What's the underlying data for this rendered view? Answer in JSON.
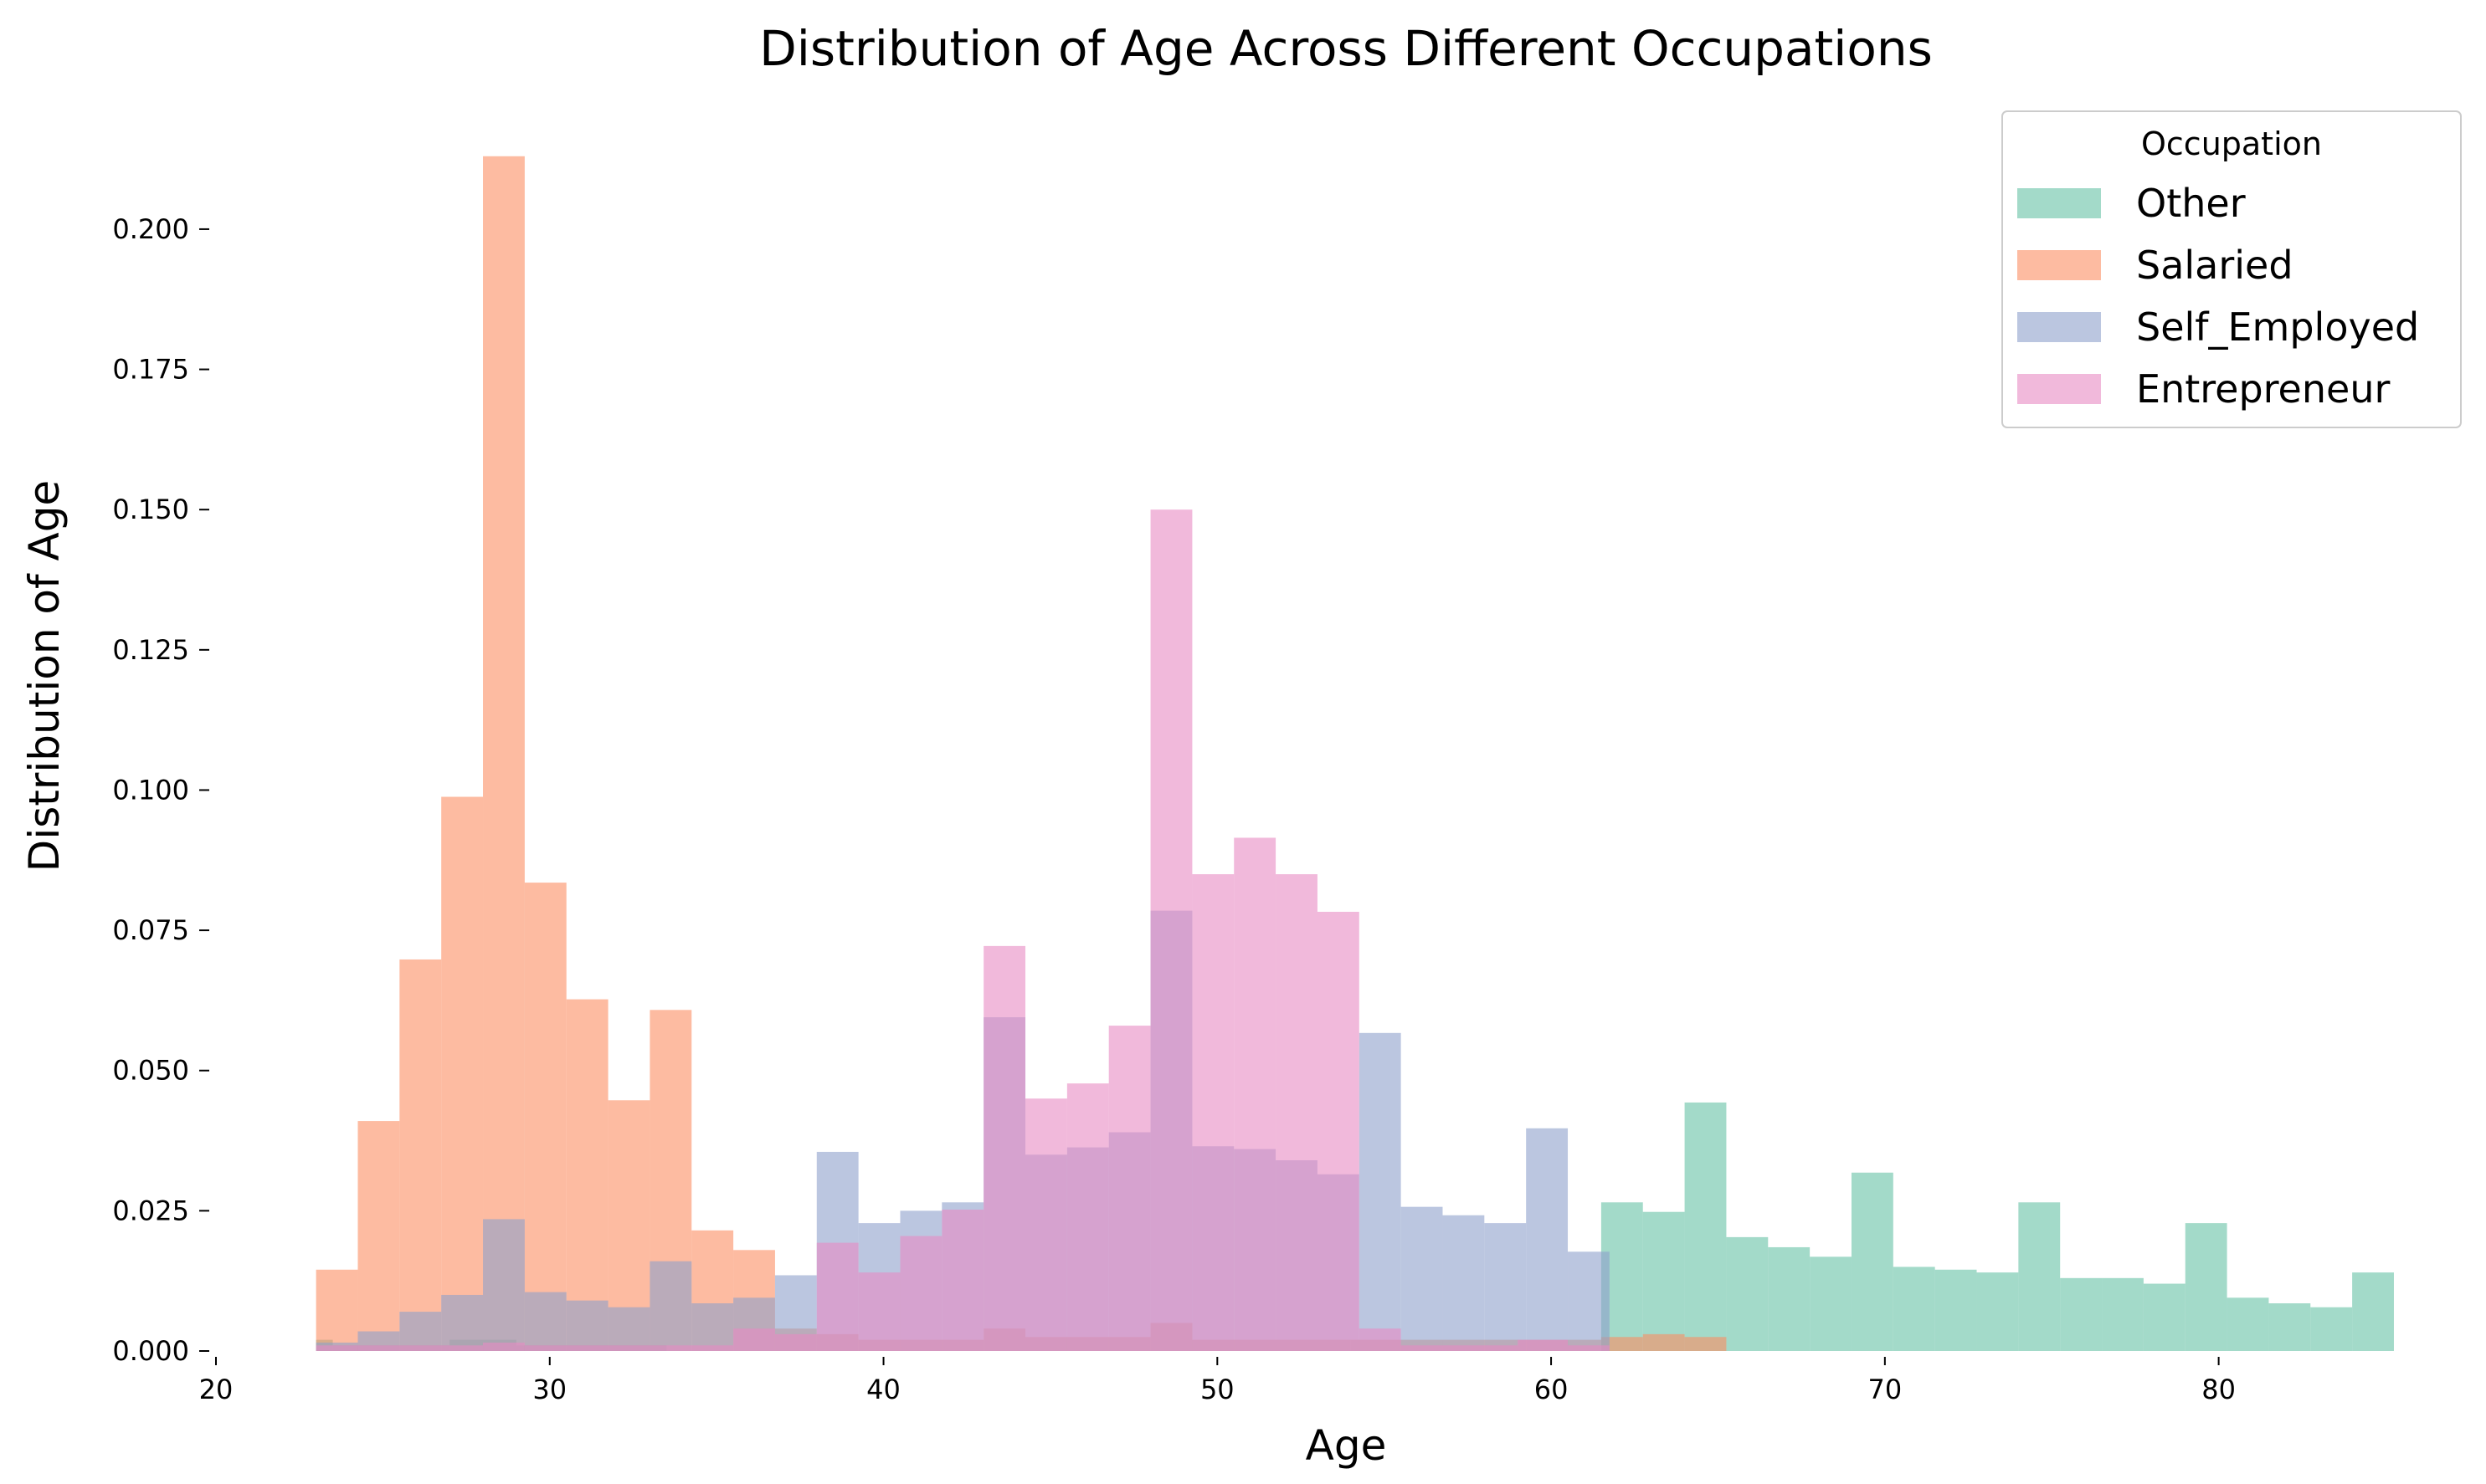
{
  "chart_data": {
    "type": "histogram",
    "title": "Distribution of Age Across Different Occupations",
    "xlabel": "Age",
    "ylabel": "Distribution of Age",
    "xlim": [
      20,
      85
    ],
    "ylim": [
      0,
      0.2155
    ],
    "xticks": [
      "20",
      "30",
      "40",
      "50",
      "60",
      "70",
      "80"
    ],
    "yticks": [
      "0.000",
      "0.025",
      "0.050",
      "0.075",
      "0.100",
      "0.125",
      "0.150",
      "0.175",
      "0.200"
    ],
    "grid": false,
    "legend": {
      "title": "Occupation",
      "placement": "top-right"
    },
    "bar_opacity": 0.6,
    "series": [
      {
        "name": "Other",
        "color": "#66c2a5",
        "bins": [
          {
            "x0": 23,
            "x1": 23.5,
            "y": 0.002
          },
          {
            "x0": 23.5,
            "x1": 27,
            "y": 0.001
          },
          {
            "x0": 27,
            "x1": 29,
            "y": 0.002
          },
          {
            "x0": 29,
            "x1": 33.5,
            "y": 0.001
          },
          {
            "x0": 61.5,
            "x1": 62.75,
            "y": 0.0265
          },
          {
            "x0": 62.75,
            "x1": 64,
            "y": 0.0248
          },
          {
            "x0": 64,
            "x1": 65.25,
            "y": 0.0443
          },
          {
            "x0": 65.25,
            "x1": 66.5,
            "y": 0.0203
          },
          {
            "x0": 66.5,
            "x1": 67.75,
            "y": 0.0185
          },
          {
            "x0": 67.75,
            "x1": 69,
            "y": 0.0168
          },
          {
            "x0": 69,
            "x1": 70.25,
            "y": 0.0318
          },
          {
            "x0": 70.25,
            "x1": 71.5,
            "y": 0.015
          },
          {
            "x0": 71.5,
            "x1": 72.75,
            "y": 0.0145
          },
          {
            "x0": 72.75,
            "x1": 74,
            "y": 0.014
          },
          {
            "x0": 74,
            "x1": 75.25,
            "y": 0.0265
          },
          {
            "x0": 75.25,
            "x1": 76.5,
            "y": 0.013
          },
          {
            "x0": 76.5,
            "x1": 77.75,
            "y": 0.013
          },
          {
            "x0": 77.75,
            "x1": 79,
            "y": 0.012
          },
          {
            "x0": 79,
            "x1": 80.25,
            "y": 0.0228
          },
          {
            "x0": 80.25,
            "x1": 81.5,
            "y": 0.0095
          },
          {
            "x0": 81.5,
            "x1": 82.75,
            "y": 0.0085
          },
          {
            "x0": 82.75,
            "x1": 84,
            "y": 0.0078
          },
          {
            "x0": 84,
            "x1": 85.25,
            "y": 0.014
          }
        ]
      },
      {
        "name": "Salaried",
        "color": "#fc8d62",
        "bins": [
          {
            "x0": 23,
            "x1": 24.25,
            "y": 0.0145
          },
          {
            "x0": 24.25,
            "x1": 25.5,
            "y": 0.041
          },
          {
            "x0": 25.5,
            "x1": 26.75,
            "y": 0.0698
          },
          {
            "x0": 26.75,
            "x1": 28,
            "y": 0.0988
          },
          {
            "x0": 28,
            "x1": 29.25,
            "y": 0.213
          },
          {
            "x0": 29.25,
            "x1": 30.5,
            "y": 0.0835
          },
          {
            "x0": 30.5,
            "x1": 31.75,
            "y": 0.0627
          },
          {
            "x0": 31.75,
            "x1": 33,
            "y": 0.0447
          },
          {
            "x0": 33,
            "x1": 34.25,
            "y": 0.0608
          },
          {
            "x0": 34.25,
            "x1": 35.5,
            "y": 0.0215
          },
          {
            "x0": 35.5,
            "x1": 36.75,
            "y": 0.018
          },
          {
            "x0": 36.75,
            "x1": 38,
            "y": 0.004
          },
          {
            "x0": 38,
            "x1": 39.25,
            "y": 0.003
          },
          {
            "x0": 39.25,
            "x1": 43,
            "y": 0.002
          },
          {
            "x0": 43,
            "x1": 44.25,
            "y": 0.004
          },
          {
            "x0": 44.25,
            "x1": 48,
            "y": 0.0025
          },
          {
            "x0": 48,
            "x1": 49.25,
            "y": 0.005
          },
          {
            "x0": 49.25,
            "x1": 54,
            "y": 0.002
          },
          {
            "x0": 54,
            "x1": 59,
            "y": 0.002
          },
          {
            "x0": 59,
            "x1": 61.5,
            "y": 0.002
          },
          {
            "x0": 61.5,
            "x1": 62.75,
            "y": 0.0025
          },
          {
            "x0": 62.75,
            "x1": 64,
            "y": 0.003
          },
          {
            "x0": 64,
            "x1": 65.25,
            "y": 0.0025
          }
        ]
      },
      {
        "name": "Self_Employed",
        "color": "#8da0cb",
        "bins": [
          {
            "x0": 23,
            "x1": 24.25,
            "y": 0.0015
          },
          {
            "x0": 24.25,
            "x1": 25.5,
            "y": 0.0035
          },
          {
            "x0": 25.5,
            "x1": 26.75,
            "y": 0.007
          },
          {
            "x0": 26.75,
            "x1": 28,
            "y": 0.01
          },
          {
            "x0": 28,
            "x1": 29.25,
            "y": 0.0235
          },
          {
            "x0": 29.25,
            "x1": 30.5,
            "y": 0.0105
          },
          {
            "x0": 30.5,
            "x1": 31.75,
            "y": 0.009
          },
          {
            "x0": 31.75,
            "x1": 33,
            "y": 0.0078
          },
          {
            "x0": 33,
            "x1": 34.25,
            "y": 0.016
          },
          {
            "x0": 34.25,
            "x1": 35.5,
            "y": 0.0085
          },
          {
            "x0": 35.5,
            "x1": 36.75,
            "y": 0.0095
          },
          {
            "x0": 36.75,
            "x1": 38,
            "y": 0.0135
          },
          {
            "x0": 38,
            "x1": 39.25,
            "y": 0.0355
          },
          {
            "x0": 39.25,
            "x1": 40.5,
            "y": 0.0228
          },
          {
            "x0": 40.5,
            "x1": 41.75,
            "y": 0.025
          },
          {
            "x0": 41.75,
            "x1": 43,
            "y": 0.0265
          },
          {
            "x0": 43,
            "x1": 44.25,
            "y": 0.0595
          },
          {
            "x0": 44.25,
            "x1": 45.5,
            "y": 0.035
          },
          {
            "x0": 45.5,
            "x1": 46.75,
            "y": 0.0363
          },
          {
            "x0": 46.75,
            "x1": 48,
            "y": 0.039
          },
          {
            "x0": 48,
            "x1": 49.25,
            "y": 0.0785
          },
          {
            "x0": 49.25,
            "x1": 50.5,
            "y": 0.0365
          },
          {
            "x0": 50.5,
            "x1": 51.75,
            "y": 0.036
          },
          {
            "x0": 51.75,
            "x1": 53,
            "y": 0.034
          },
          {
            "x0": 53,
            "x1": 54.25,
            "y": 0.0315
          },
          {
            "x0": 54.25,
            "x1": 55.5,
            "y": 0.0567
          },
          {
            "x0": 55.5,
            "x1": 56.75,
            "y": 0.0257
          },
          {
            "x0": 56.75,
            "x1": 58,
            "y": 0.0242
          },
          {
            "x0": 58,
            "x1": 59.25,
            "y": 0.0228
          },
          {
            "x0": 59.25,
            "x1": 60.5,
            "y": 0.0397
          },
          {
            "x0": 60.5,
            "x1": 61.75,
            "y": 0.0177
          }
        ]
      },
      {
        "name": "Entrepreneur",
        "color": "#e78ac3",
        "bins": [
          {
            "x0": 23,
            "x1": 24.25,
            "y": 0.001
          },
          {
            "x0": 24.25,
            "x1": 28,
            "y": 0.001
          },
          {
            "x0": 28,
            "x1": 29.25,
            "y": 0.0015
          },
          {
            "x0": 29.25,
            "x1": 35.5,
            "y": 0.001
          },
          {
            "x0": 35.5,
            "x1": 36.75,
            "y": 0.004
          },
          {
            "x0": 36.75,
            "x1": 38,
            "y": 0.003
          },
          {
            "x0": 38,
            "x1": 39.25,
            "y": 0.0193
          },
          {
            "x0": 39.25,
            "x1": 40.5,
            "y": 0.014
          },
          {
            "x0": 40.5,
            "x1": 41.75,
            "y": 0.0205
          },
          {
            "x0": 41.75,
            "x1": 43,
            "y": 0.0252
          },
          {
            "x0": 43,
            "x1": 44.25,
            "y": 0.0722
          },
          {
            "x0": 44.25,
            "x1": 45.5,
            "y": 0.045
          },
          {
            "x0": 45.5,
            "x1": 46.75,
            "y": 0.0477
          },
          {
            "x0": 46.75,
            "x1": 48,
            "y": 0.058
          },
          {
            "x0": 48,
            "x1": 49.25,
            "y": 0.15
          },
          {
            "x0": 49.25,
            "x1": 50.5,
            "y": 0.085
          },
          {
            "x0": 50.5,
            "x1": 51.75,
            "y": 0.0915
          },
          {
            "x0": 51.75,
            "x1": 53,
            "y": 0.085
          },
          {
            "x0": 53,
            "x1": 54.25,
            "y": 0.0783
          },
          {
            "x0": 54.25,
            "x1": 55.5,
            "y": 0.004
          },
          {
            "x0": 55.5,
            "x1": 59,
            "y": 0.001
          },
          {
            "x0": 59,
            "x1": 60.5,
            "y": 0.002
          },
          {
            "x0": 60.5,
            "x1": 61.75,
            "y": 0.001
          }
        ]
      }
    ]
  }
}
